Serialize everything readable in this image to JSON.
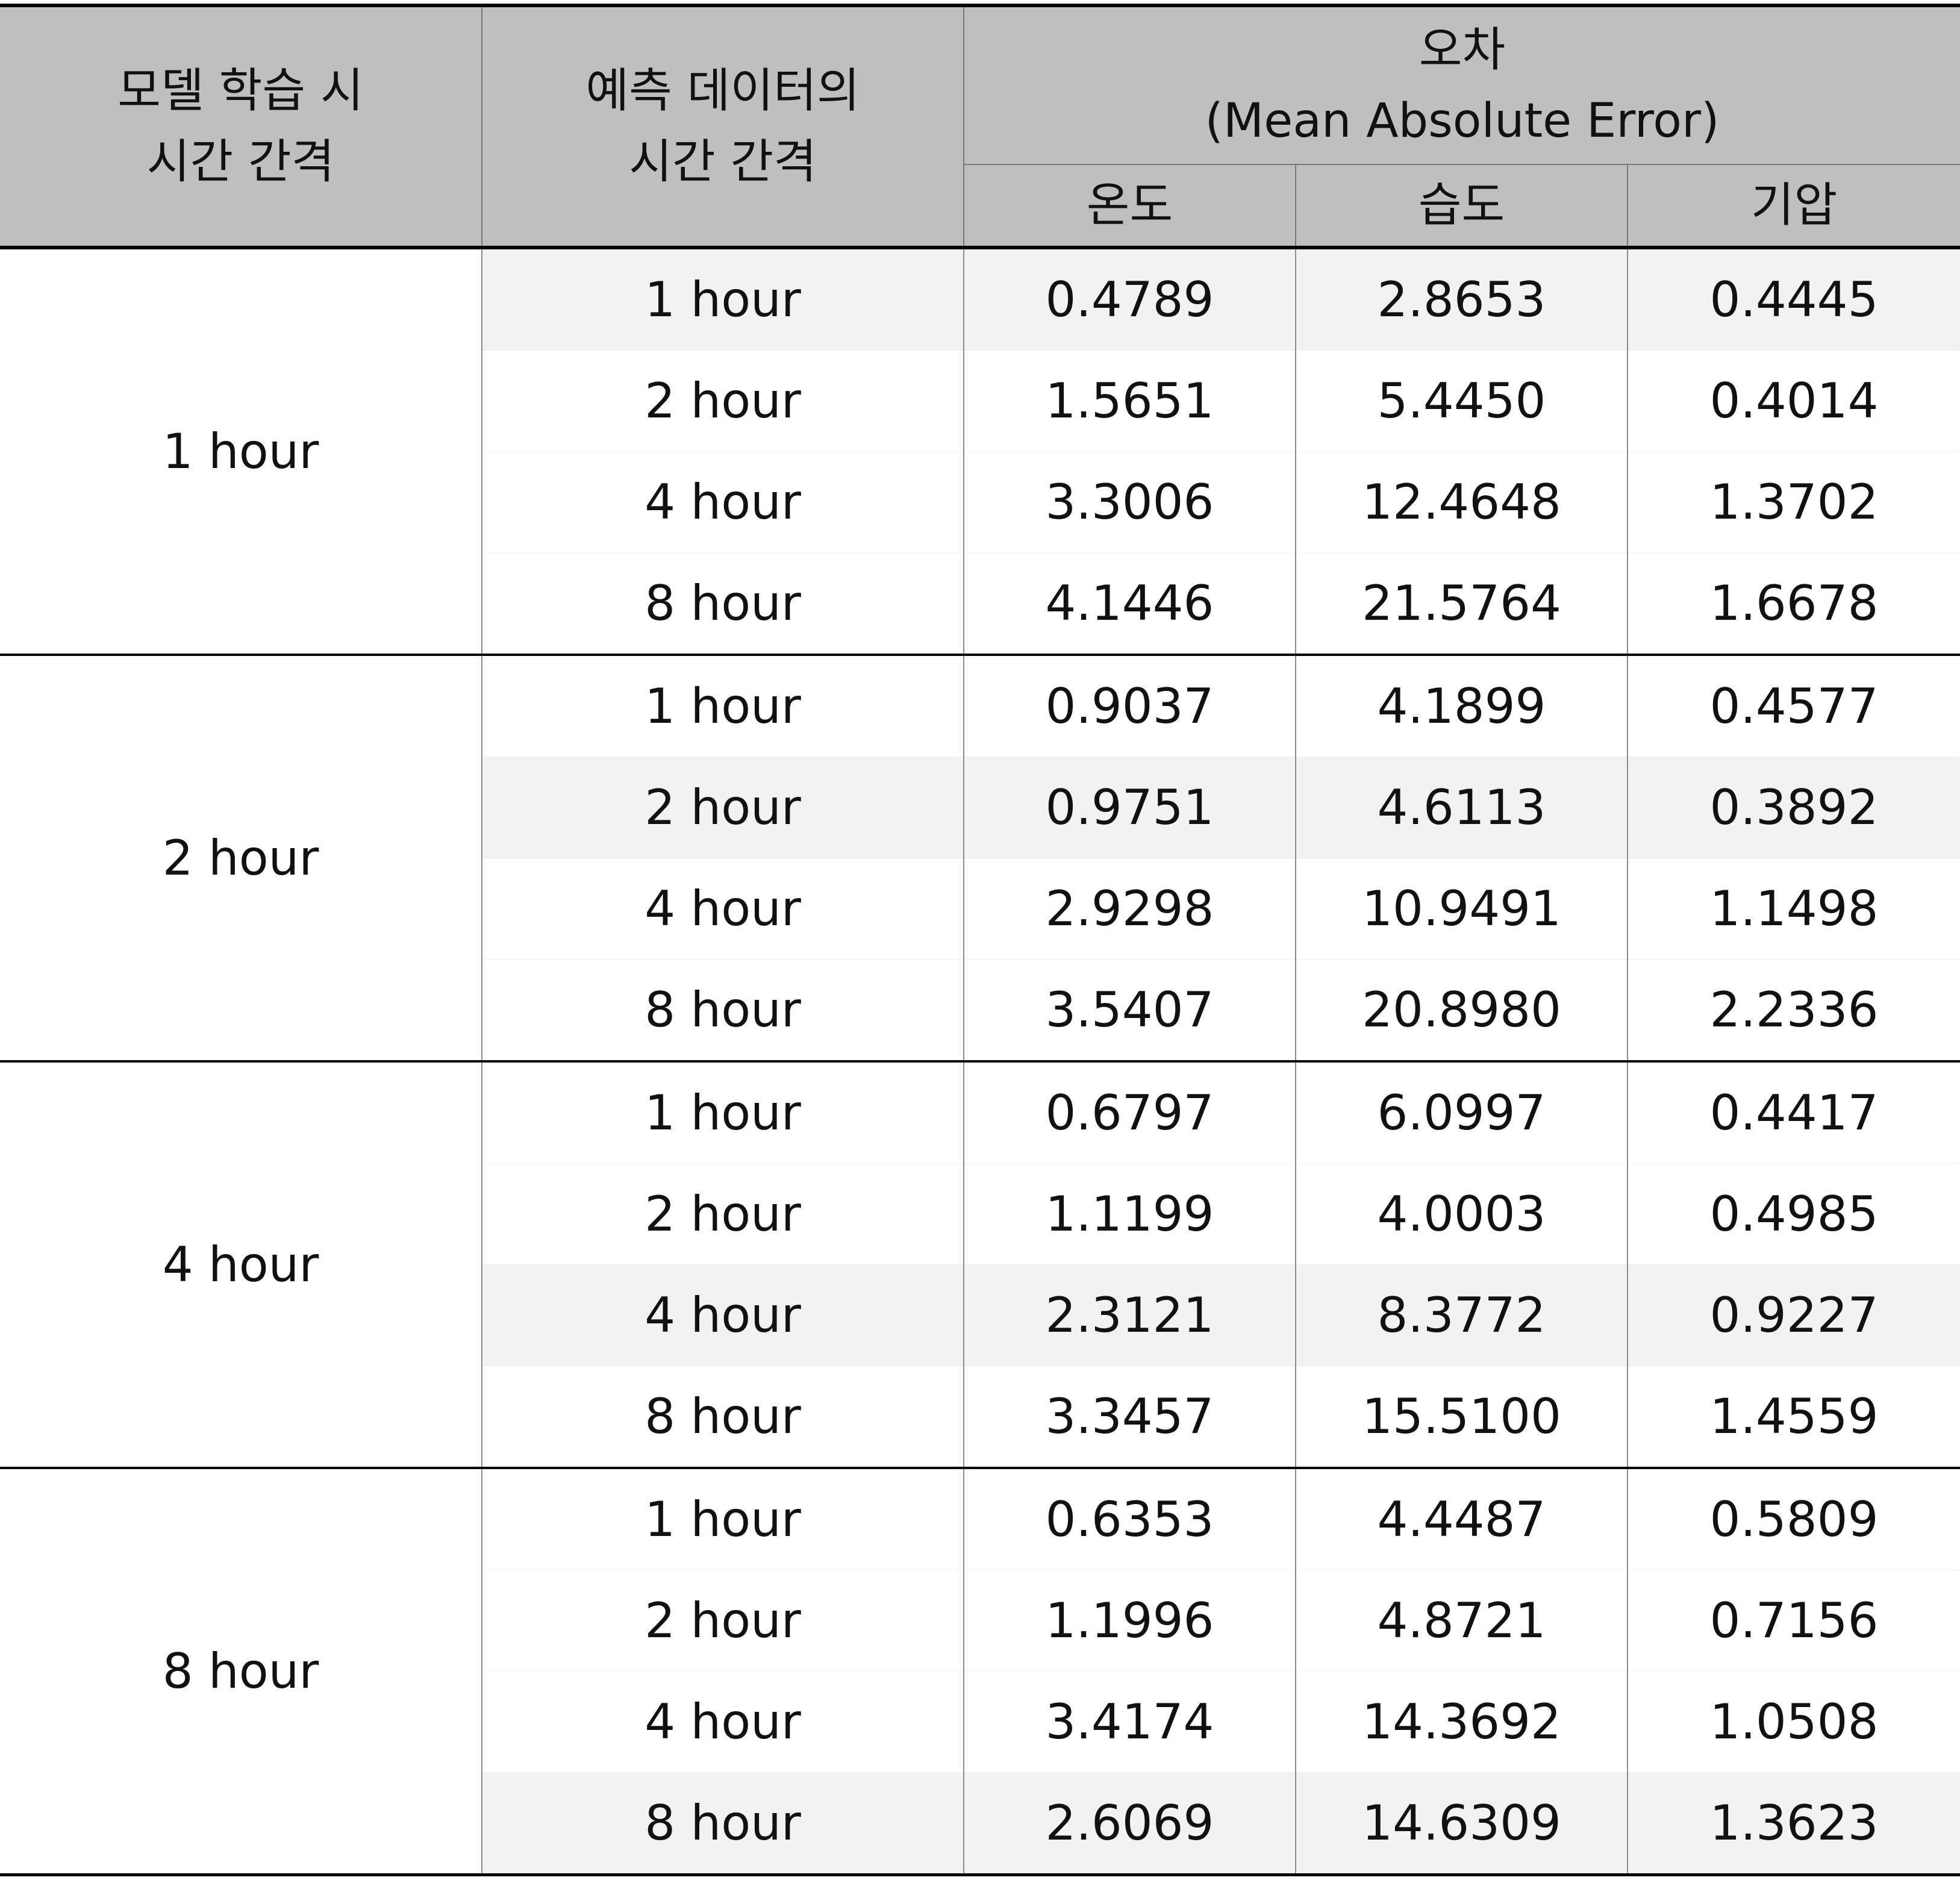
{
  "header": {
    "col1_line1": "모델 학습 시",
    "col1_line2": "시간 간격",
    "col2_line1": "예측 데이터의",
    "col2_line2": "시간 간격",
    "error_title": "오차",
    "error_subtitle": "(Mean Absolute Error)",
    "temp": "온도",
    "humidity": "습도",
    "pressure": "기압"
  },
  "groups": [
    {
      "label": "1 hour",
      "rows": [
        {
          "pred": "1 hour",
          "temp": "0.4789",
          "humidity": "2.8653",
          "pressure": "0.4445",
          "shaded": true
        },
        {
          "pred": "2 hour",
          "temp": "1.5651",
          "humidity": "5.4450",
          "pressure": "0.4014",
          "shaded": false
        },
        {
          "pred": "4 hour",
          "temp": "3.3006",
          "humidity": "12.4648",
          "pressure": "1.3702",
          "shaded": false
        },
        {
          "pred": "8 hour",
          "temp": "4.1446",
          "humidity": "21.5764",
          "pressure": "1.6678",
          "shaded": false
        }
      ]
    },
    {
      "label": "2 hour",
      "rows": [
        {
          "pred": "1 hour",
          "temp": "0.9037",
          "humidity": "4.1899",
          "pressure": "0.4577",
          "shaded": false
        },
        {
          "pred": "2 hour",
          "temp": "0.9751",
          "humidity": "4.6113",
          "pressure": "0.3892",
          "shaded": true
        },
        {
          "pred": "4 hour",
          "temp": "2.9298",
          "humidity": "10.9491",
          "pressure": "1.1498",
          "shaded": false
        },
        {
          "pred": "8 hour",
          "temp": "3.5407",
          "humidity": "20.8980",
          "pressure": "2.2336",
          "shaded": false
        }
      ]
    },
    {
      "label": "4 hour",
      "rows": [
        {
          "pred": "1 hour",
          "temp": "0.6797",
          "humidity": "6.0997",
          "pressure": "0.4417",
          "shaded": false
        },
        {
          "pred": "2 hour",
          "temp": "1.1199",
          "humidity": "4.0003",
          "pressure": "0.4985",
          "shaded": false
        },
        {
          "pred": "4 hour",
          "temp": "2.3121",
          "humidity": "8.3772",
          "pressure": "0.9227",
          "shaded": true
        },
        {
          "pred": "8 hour",
          "temp": "3.3457",
          "humidity": "15.5100",
          "pressure": "1.4559",
          "shaded": false
        }
      ]
    },
    {
      "label": "8 hour",
      "rows": [
        {
          "pred": "1 hour",
          "temp": "0.6353",
          "humidity": "4.4487",
          "pressure": "0.5809",
          "shaded": false
        },
        {
          "pred": "2 hour",
          "temp": "1.1996",
          "humidity": "4.8721",
          "pressure": "0.7156",
          "shaded": false
        },
        {
          "pred": "4 hour",
          "temp": "3.4174",
          "humidity": "14.3692",
          "pressure": "1.0508",
          "shaded": false
        },
        {
          "pred": "8 hour",
          "temp": "2.6069",
          "humidity": "14.6309",
          "pressure": "1.3623",
          "shaded": true
        }
      ]
    }
  ]
}
